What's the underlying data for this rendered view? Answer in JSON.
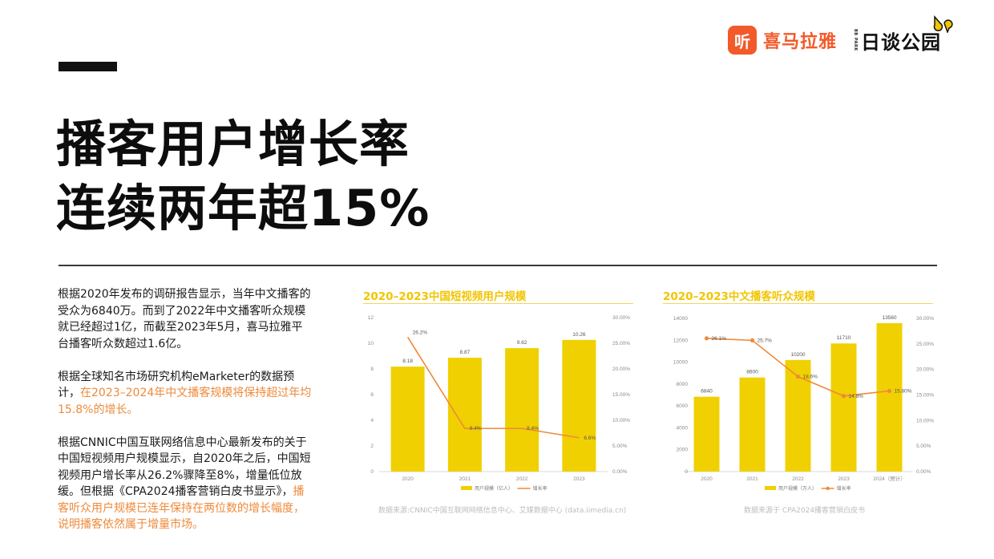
{
  "header": {
    "accent_bar": true,
    "logos": {
      "ximalaya": {
        "badge": "听",
        "name": "喜马拉雅"
      },
      "bbpark": {
        "small": "BB PARK",
        "name": "日谈公园"
      }
    }
  },
  "headline": {
    "line1": "播客用户增长率",
    "line2": "连续两年超15%"
  },
  "body": {
    "p1": "根据2020年发布的调研报告显示，当年中文播客的受众为6840万。而到了2022年中文播客听众规模就已经超过1亿，而截至2023年5月，喜马拉雅平台播客听众数超过1.6亿。",
    "p2_plain": "根据全球知名市场研究机构eMarketer的数据预计，",
    "p2_highlight": "在2023–2024年中文播客规模将保持超过年均15.8%的增长。",
    "p3_plain": "根据CNNIC中国互联网络信息中心最新发布的关于中国短视频用户规模显示，自2020年之后，中国短视频用户增长率从26.2%骤降至8%，增量低位放缓。但根据《CPA2024播客营销白皮书显示》，",
    "p3_highlight": "播客听众用户规模已连年保持在两位数的增长幅度，说明播客依然属于增量市场。"
  },
  "colors": {
    "bar": "#f0d000",
    "line": "#ee8a3a",
    "title": "#f2c500",
    "highlight": "#ee8a3a"
  },
  "chart_data": [
    {
      "type": "bar",
      "title": "2020–2023中国短视频用户规模",
      "categories": [
        "2020",
        "2021",
        "2022",
        "2023"
      ],
      "series": [
        {
          "name": "用户规模（亿人）",
          "type": "bar",
          "axis": "left",
          "values": [
            8.18,
            8.87,
            9.62,
            10.26
          ],
          "labels": [
            "8.18",
            "8.87",
            "9.62",
            "10.26"
          ]
        },
        {
          "name": "增长率",
          "type": "line",
          "axis": "right",
          "values": [
            26.2,
            8.4,
            8.4,
            6.6
          ],
          "labels": [
            "26.2%",
            "8.4%",
            "8.4%",
            "6.6%"
          ]
        }
      ],
      "left_axis": {
        "ylim": [
          0,
          12
        ],
        "ticks": [
          "0",
          "2",
          "4",
          "6",
          "8",
          "10",
          "12"
        ]
      },
      "right_axis": {
        "ylim": [
          0,
          30
        ],
        "ticks": [
          "0.00%",
          "5.00%",
          "10.00%",
          "15.00%",
          "20.00%",
          "25.00%",
          "30.00%"
        ]
      },
      "legend_position": "bottom",
      "grid": false,
      "source": "数据来源:CNNIC中国互联网网络信息中心、艾媒数据中心 (data.iimedia.cn)"
    },
    {
      "type": "bar",
      "title": "2020–2023中文播客听众规模",
      "categories": [
        "2020",
        "2021",
        "2022",
        "2023",
        "2024（预计）"
      ],
      "series": [
        {
          "name": "用户规模（万人）",
          "type": "bar",
          "axis": "left",
          "values": [
            6840,
            8600,
            10200,
            11710,
            13560
          ],
          "labels": [
            "6840",
            "8600",
            "10200",
            "11710",
            "13560"
          ]
        },
        {
          "name": "增长率",
          "type": "line",
          "axis": "right",
          "values": [
            26.1,
            25.7,
            18.6,
            14.8,
            15.8
          ],
          "labels": [
            "26.1%",
            "25.7%",
            "18.6%",
            "14.8%",
            "15.80%"
          ]
        }
      ],
      "left_axis": {
        "ylim": [
          0,
          14000
        ],
        "ticks": [
          "0",
          "2000",
          "4000",
          "6000",
          "8000",
          "10000",
          "12000",
          "14000"
        ]
      },
      "right_axis": {
        "ylim": [
          0,
          30
        ],
        "ticks": [
          "0.00%",
          "5.00%",
          "10.00%",
          "15.00%",
          "20.00%",
          "25.00%",
          "30.00%"
        ]
      },
      "legend_position": "bottom",
      "grid": false,
      "source": "数据来源于 CPA2024播客营销白皮书"
    }
  ]
}
